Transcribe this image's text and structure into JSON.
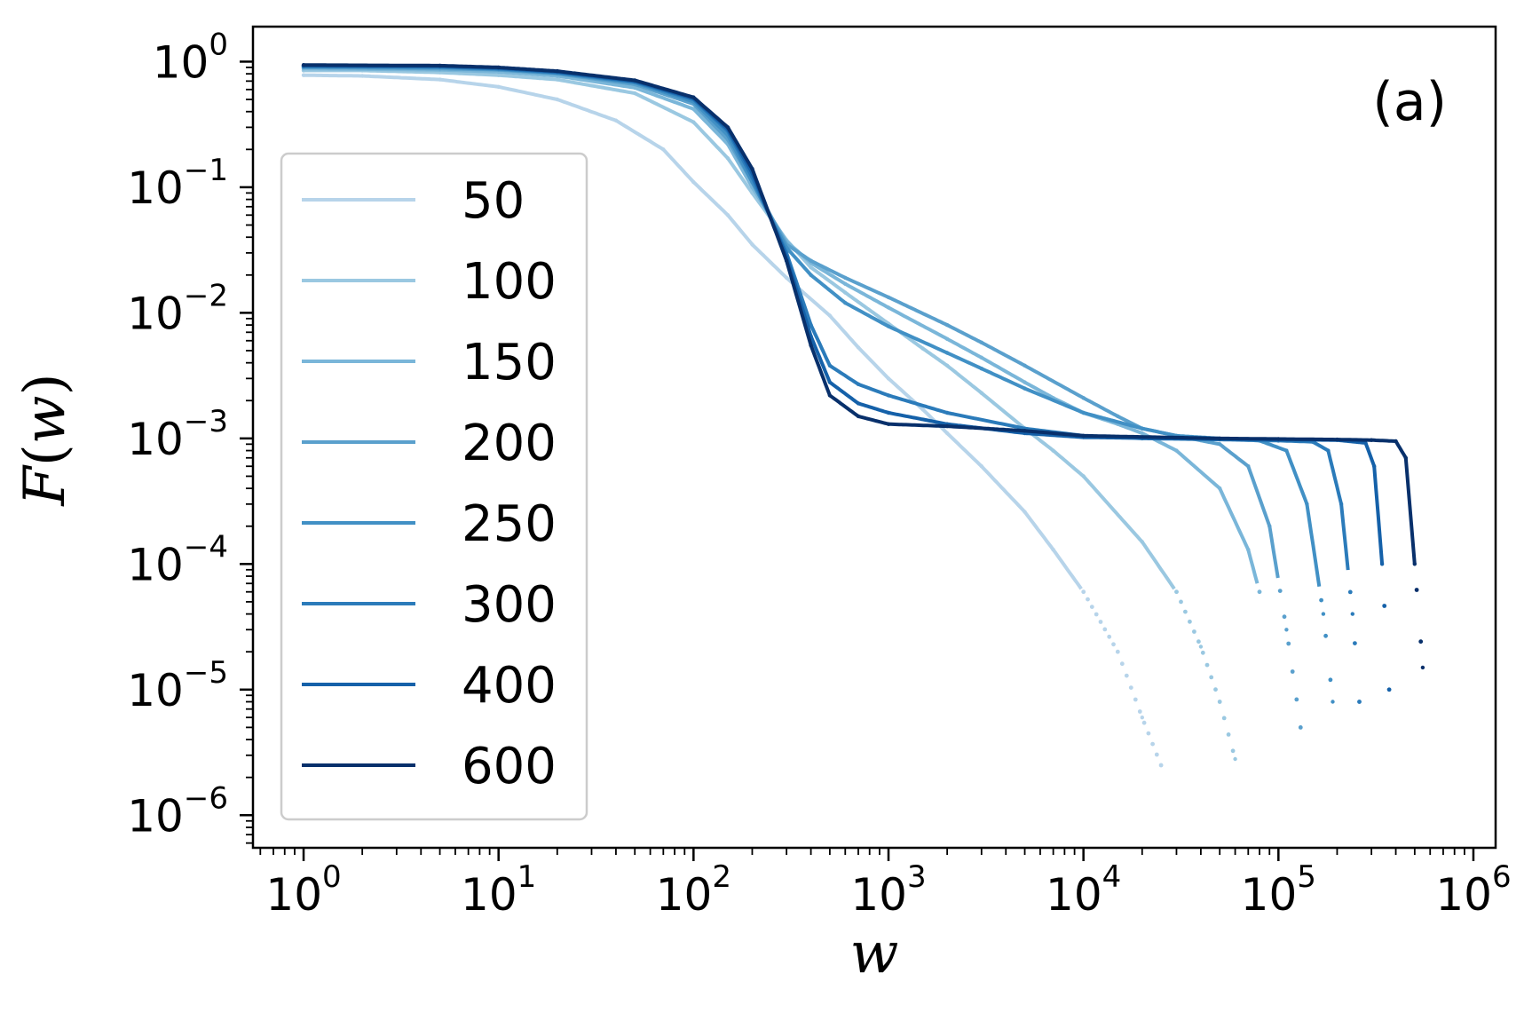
{
  "chart_data": {
    "type": "scatter",
    "xscale": "log",
    "yscale": "log",
    "xlim": [
      0.55,
      1300000
    ],
    "ylim": [
      5.5e-07,
      1.9
    ],
    "grid": false,
    "xlabel": "w",
    "ylabel": "F(w)",
    "ylabel_parts": {
      "func": "F",
      "open": "(",
      "var": "w",
      "close": ")"
    },
    "annotation": "(a)",
    "legend_position": "upper-left",
    "x_ticks": [
      {
        "base": "10",
        "exp": "0",
        "value": 1
      },
      {
        "base": "10",
        "exp": "1",
        "value": 10
      },
      {
        "base": "10",
        "exp": "2",
        "value": 100
      },
      {
        "base": "10",
        "exp": "3",
        "value": 1000
      },
      {
        "base": "10",
        "exp": "4",
        "value": 10000
      },
      {
        "base": "10",
        "exp": "5",
        "value": 100000
      },
      {
        "base": "10",
        "exp": "6",
        "value": 1000000
      }
    ],
    "y_ticks": [
      {
        "base": "10",
        "exp": "0",
        "value": 1
      },
      {
        "base": "10",
        "exp": "−1",
        "value": 0.1
      },
      {
        "base": "10",
        "exp": "−2",
        "value": 0.01
      },
      {
        "base": "10",
        "exp": "−3",
        "value": 0.001
      },
      {
        "base": "10",
        "exp": "−4",
        "value": 0.0001
      },
      {
        "base": "10",
        "exp": "−5",
        "value": 1e-05
      },
      {
        "base": "10",
        "exp": "−6",
        "value": 1e-06
      }
    ],
    "series": [
      {
        "name": "50",
        "color": "#b7d4ea",
        "x": [
          1,
          2,
          5,
          10,
          20,
          40,
          70,
          100,
          150,
          200,
          300,
          500,
          700,
          1000,
          1500,
          2000,
          3000,
          5000,
          7000,
          10000,
          15000,
          20000,
          25000
        ],
        "y": [
          0.78,
          0.77,
          0.72,
          0.63,
          0.5,
          0.34,
          0.2,
          0.11,
          0.06,
          0.035,
          0.019,
          0.0095,
          0.0053,
          0.003,
          0.0017,
          0.0011,
          0.0006,
          0.00026,
          0.00013,
          6e-05,
          2e-05,
          6e-06,
          2.5e-06
        ]
      },
      {
        "name": "100",
        "color": "#9ac8e1",
        "x": [
          1,
          2,
          5,
          10,
          20,
          50,
          100,
          150,
          200,
          300,
          400,
          600,
          1000,
          1500,
          2000,
          3000,
          5000,
          7000,
          10000,
          20000,
          30000,
          40000,
          50000,
          60000
        ],
        "y": [
          0.85,
          0.85,
          0.82,
          0.78,
          0.72,
          0.56,
          0.33,
          0.17,
          0.09,
          0.038,
          0.023,
          0.0145,
          0.0082,
          0.0052,
          0.0038,
          0.0023,
          0.0012,
          0.0008,
          0.0005,
          0.00015,
          6e-05,
          2.2e-05,
          8e-06,
          2.8e-06
        ]
      },
      {
        "name": "150",
        "color": "#7ab6d9",
        "x": [
          1,
          5,
          10,
          20,
          50,
          100,
          150,
          200,
          300,
          400,
          600,
          1000,
          2000,
          3000,
          5000,
          7000,
          10000,
          15000,
          20000,
          30000,
          50000,
          70000,
          80000
        ],
        "y": [
          0.88,
          0.86,
          0.83,
          0.77,
          0.62,
          0.42,
          0.22,
          0.1,
          0.037,
          0.025,
          0.017,
          0.011,
          0.0062,
          0.0044,
          0.0028,
          0.0021,
          0.0016,
          0.0013,
          0.0011,
          0.0008,
          0.0004,
          0.00013,
          6e-05
        ]
      },
      {
        "name": "200",
        "color": "#5aa0cd",
        "x": [
          1,
          5,
          10,
          20,
          50,
          100,
          150,
          200,
          300,
          400,
          600,
          1000,
          2000,
          3000,
          5000,
          10000,
          15000,
          20000,
          30000,
          50000,
          70000,
          90000,
          110000,
          130000
        ],
        "y": [
          0.9,
          0.88,
          0.86,
          0.8,
          0.66,
          0.46,
          0.24,
          0.11,
          0.035,
          0.026,
          0.019,
          0.0133,
          0.008,
          0.0058,
          0.0038,
          0.0021,
          0.0015,
          0.0012,
          0.00105,
          0.0009,
          0.0006,
          0.0002,
          3e-05,
          5e-06
        ]
      },
      {
        "name": "250",
        "color": "#4190c5",
        "x": [
          1,
          5,
          10,
          20,
          50,
          100,
          150,
          200,
          300,
          400,
          600,
          1000,
          2000,
          3000,
          5000,
          10000,
          20000,
          30000,
          50000,
          80000,
          110000,
          140000,
          170000,
          190000
        ],
        "y": [
          0.91,
          0.9,
          0.87,
          0.81,
          0.68,
          0.48,
          0.26,
          0.11,
          0.033,
          0.02,
          0.012,
          0.0078,
          0.0048,
          0.0036,
          0.0025,
          0.0016,
          0.0012,
          0.00105,
          0.001,
          0.00096,
          0.0008,
          0.0003,
          4e-05,
          8e-06
        ]
      },
      {
        "name": "300",
        "color": "#2b7bba",
        "x": [
          1,
          5,
          10,
          20,
          50,
          100,
          150,
          200,
          300,
          400,
          500,
          700,
          1000,
          2000,
          5000,
          10000,
          20000,
          50000,
          100000,
          150000,
          180000,
          210000,
          240000,
          260000
        ],
        "y": [
          0.92,
          0.91,
          0.88,
          0.82,
          0.69,
          0.5,
          0.28,
          0.12,
          0.03,
          0.008,
          0.0038,
          0.0027,
          0.0022,
          0.0016,
          0.0012,
          0.00105,
          0.001,
          0.00098,
          0.00096,
          0.00094,
          0.0008,
          0.0003,
          4e-05,
          8e-06
        ]
      },
      {
        "name": "400",
        "color": "#1561a9",
        "x": [
          1,
          5,
          10,
          20,
          50,
          100,
          150,
          200,
          300,
          400,
          500,
          700,
          1000,
          2000,
          5000,
          10000,
          50000,
          100000,
          200000,
          280000,
          310000,
          340000,
          370000
        ],
        "y": [
          0.93,
          0.92,
          0.89,
          0.83,
          0.7,
          0.51,
          0.29,
          0.13,
          0.028,
          0.0065,
          0.0028,
          0.0019,
          0.0016,
          0.0013,
          0.0011,
          0.00102,
          0.00099,
          0.00098,
          0.00097,
          0.00092,
          0.0006,
          0.0001,
          1e-05
        ]
      },
      {
        "name": "600",
        "color": "#08306b",
        "x": [
          1,
          5,
          10,
          20,
          50,
          100,
          150,
          200,
          300,
          400,
          500,
          700,
          1000,
          2000,
          5000,
          10000,
          50000,
          100000,
          200000,
          300000,
          400000,
          450000,
          500000,
          550000
        ],
        "y": [
          0.94,
          0.93,
          0.9,
          0.84,
          0.71,
          0.52,
          0.3,
          0.14,
          0.026,
          0.0055,
          0.0022,
          0.0015,
          0.0013,
          0.00125,
          0.00115,
          0.00105,
          0.001,
          0.00099,
          0.00098,
          0.00097,
          0.00095,
          0.0007,
          0.0001,
          1.5e-05
        ]
      }
    ]
  }
}
